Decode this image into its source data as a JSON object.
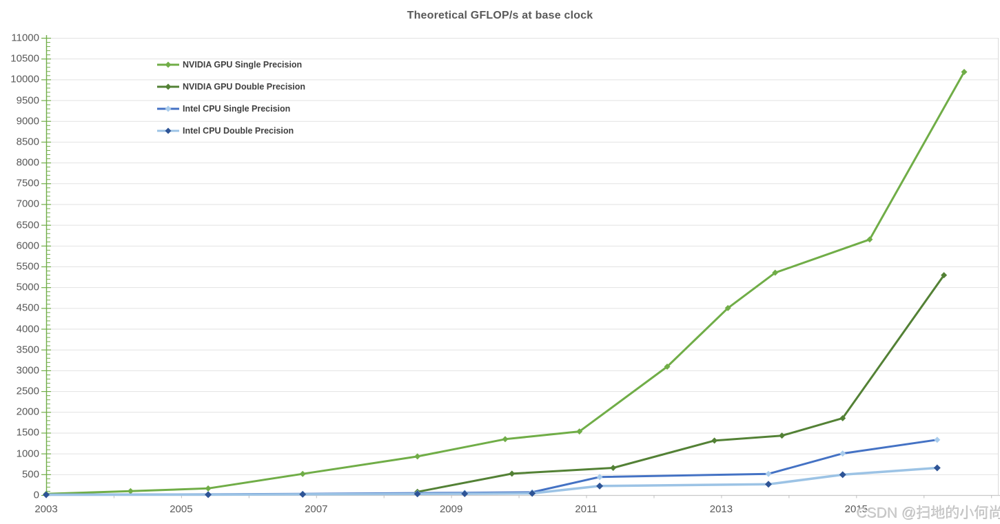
{
  "watermark": "CSDN @扫地的小何尚",
  "chart_data": {
    "type": "line",
    "title": "Theoretical GFLOP/s at base clock",
    "legend_position": "inside-top-left",
    "grid": "horizontal",
    "xlim": [
      2003,
      2017.1
    ],
    "ylim": [
      0,
      11000
    ],
    "x_tick_labels": [
      "2003",
      "2005",
      "2007",
      "2009",
      "2011",
      "2013",
      "2015"
    ],
    "x_tick_years": [
      2003,
      2005,
      2007,
      2009,
      2011,
      2013,
      2015
    ],
    "x_minor_tick_step_years": 1,
    "y_ticks": [
      0,
      500,
      1000,
      1500,
      2000,
      2500,
      3000,
      3500,
      4000,
      4500,
      5000,
      5500,
      6000,
      6500,
      7000,
      7500,
      8000,
      8500,
      9000,
      9500,
      10000,
      10500,
      11000
    ],
    "y_minor_tick_step": 100,
    "colors": {
      "axis_y": "#70AD47",
      "axis_x": "#C8C8C8",
      "x_tick": "#C0C0C0",
      "gridline": "#E2E2E2",
      "plot_right_border": "#D9D9D9",
      "title_text": "#595959",
      "axis_label_text": "#595959",
      "legend_text": "#404040"
    },
    "series": [
      {
        "name": "NVIDIA GPU Single Precision",
        "line_color": "#70AD47",
        "marker_color": "#70AD47",
        "line_width": 3,
        "marker_size": 4.5,
        "points": [
          [
            2003.0,
            30
          ],
          [
            2004.25,
            95
          ],
          [
            2005.4,
            160
          ],
          [
            2006.8,
            510
          ],
          [
            2008.5,
            930
          ],
          [
            2009.8,
            1345
          ],
          [
            2010.9,
            1530
          ],
          [
            2012.2,
            3090
          ],
          [
            2013.1,
            4500
          ],
          [
            2013.8,
            5350
          ],
          [
            2015.2,
            6150
          ],
          [
            2016.6,
            10180
          ]
        ]
      },
      {
        "name": "NVIDIA GPU Double Precision",
        "line_color": "#538135",
        "marker_color": "#538135",
        "line_width": 3,
        "marker_size": 4.5,
        "points": [
          [
            2008.5,
            78
          ],
          [
            2009.9,
            515
          ],
          [
            2011.4,
            655
          ],
          [
            2012.9,
            1310
          ],
          [
            2013.9,
            1430
          ],
          [
            2014.8,
            1850
          ],
          [
            2016.3,
            5290
          ]
        ]
      },
      {
        "name": "Intel CPU Single Precision",
        "line_color": "#4472C4",
        "marker_color": "#A9CCEC",
        "line_width": 3,
        "marker_size": 4.5,
        "points": [
          [
            2003.0,
            12
          ],
          [
            2005.4,
            18
          ],
          [
            2006.8,
            28
          ],
          [
            2008.5,
            48
          ],
          [
            2009.2,
            55
          ],
          [
            2010.2,
            68
          ],
          [
            2011.2,
            435
          ],
          [
            2013.7,
            510
          ],
          [
            2014.8,
            1000
          ],
          [
            2016.2,
            1330
          ]
        ]
      },
      {
        "name": "Intel CPU Double Precision",
        "line_color": "#9CC3E5",
        "marker_color": "#2E5496",
        "line_width": 3.5,
        "marker_size": 5,
        "points": [
          [
            2003.0,
            8
          ],
          [
            2005.4,
            10
          ],
          [
            2006.8,
            18
          ],
          [
            2008.5,
            28
          ],
          [
            2009.2,
            33
          ],
          [
            2010.2,
            42
          ],
          [
            2011.2,
            218
          ],
          [
            2013.7,
            260
          ],
          [
            2014.8,
            490
          ],
          [
            2016.2,
            655
          ]
        ]
      }
    ]
  }
}
